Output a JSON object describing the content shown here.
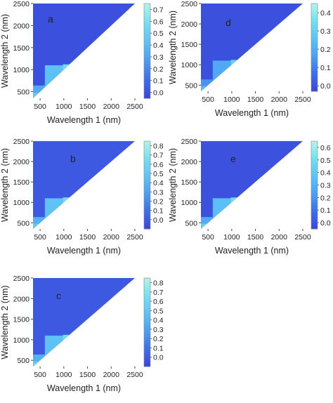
{
  "chart_data": [
    {
      "type": "heatmap",
      "panel_label": "a",
      "title": "",
      "xlabel": "Wavelength 1 (nm)",
      "ylabel": "Wavelength 2 (nm)",
      "x_ticks": [
        500,
        1000,
        1500,
        2000,
        2500
      ],
      "y_ticks": [
        500,
        1000,
        1500,
        2000,
        2500
      ],
      "xlim": [
        350,
        2500
      ],
      "ylim": [
        350,
        2500
      ],
      "colorbar": {
        "ticks": [
          0.0,
          0.1,
          0.2,
          0.3,
          0.4,
          0.5,
          0.6,
          0.7
        ],
        "range": [
          -0.05,
          0.75
        ]
      },
      "color_scale": [
        "#3b43d9",
        "#3f6de8",
        "#4c9ef3",
        "#5cc3f5",
        "#73e0ee",
        "#b3f2ea"
      ],
      "region": "upper triangle (wavelength 2 > wavelength 1)",
      "bands": [
        {
          "y_range": [
            350,
            480
          ],
          "x_range": [
            350,
            2500
          ],
          "value": 0.5
        },
        {
          "y_range": [
            480,
            640
          ],
          "x_range": [
            350,
            2500
          ],
          "value": 0.35
        },
        {
          "y_range": [
            640,
            790
          ],
          "x_range": [
            980,
            2500
          ],
          "value": 0.58
        },
        {
          "y_range": [
            790,
            920
          ],
          "x_range": [
            980,
            2500
          ],
          "value": 0.48
        },
        {
          "y_range": [
            920,
            1120
          ],
          "x_range": [
            980,
            2500
          ],
          "value": 0.6
        },
        {
          "y_range": [
            500,
            1100
          ],
          "x_range": [
            600,
            980
          ],
          "value": 0.45
        }
      ]
    },
    {
      "type": "heatmap",
      "panel_label": "b",
      "title": "",
      "xlabel": "Wavelength 1 (nm)",
      "ylabel": "Wavelength 2 (nm)",
      "x_ticks": [
        500,
        1000,
        1500,
        2000,
        2500
      ],
      "y_ticks": [
        500,
        1000,
        1500,
        2000,
        2500
      ],
      "xlim": [
        350,
        2500
      ],
      "ylim": [
        350,
        2500
      ],
      "colorbar": {
        "ticks": [
          0.0,
          0.1,
          0.2,
          0.3,
          0.4,
          0.5,
          0.6,
          0.7,
          0.8
        ],
        "range": [
          -0.1,
          0.85
        ]
      },
      "color_scale": [
        "#3b43d9",
        "#3f6de8",
        "#4c9ef3",
        "#5cc3f5",
        "#73e0ee",
        "#b3f2ea"
      ],
      "region": "upper triangle (wavelength 2 > wavelength 1)",
      "bands": [
        {
          "y_range": [
            350,
            480
          ],
          "x_range": [
            350,
            2500
          ],
          "value": 0.55
        },
        {
          "y_range": [
            480,
            640
          ],
          "x_range": [
            350,
            2500
          ],
          "value": 0.4
        },
        {
          "y_range": [
            640,
            790
          ],
          "x_range": [
            980,
            2500
          ],
          "value": 0.65
        },
        {
          "y_range": [
            790,
            920
          ],
          "x_range": [
            980,
            2500
          ],
          "value": 0.55
        },
        {
          "y_range": [
            920,
            1120
          ],
          "x_range": [
            980,
            2500
          ],
          "value": 0.68
        },
        {
          "y_range": [
            500,
            1100
          ],
          "x_range": [
            600,
            980
          ],
          "value": 0.5
        }
      ]
    },
    {
      "type": "heatmap",
      "panel_label": "c",
      "title": "",
      "xlabel": "Wavelength 1 (nm)",
      "ylabel": "Wavelength 2 (nm)",
      "x_ticks": [
        500,
        1000,
        1500,
        2000,
        2500
      ],
      "y_ticks": [
        500,
        1000,
        1500,
        2000,
        2500
      ],
      "xlim": [
        350,
        2500
      ],
      "ylim": [
        350,
        2500
      ],
      "colorbar": {
        "ticks": [
          0.0,
          0.1,
          0.2,
          0.3,
          0.4,
          0.5,
          0.6,
          0.7,
          0.8
        ],
        "range": [
          -0.1,
          0.85
        ]
      },
      "color_scale": [
        "#3b43d9",
        "#3f6de8",
        "#4c9ef3",
        "#5cc3f5",
        "#73e0ee",
        "#b3f2ea"
      ],
      "region": "upper triangle (wavelength 2 > wavelength 1)",
      "bands": [
        {
          "y_range": [
            350,
            480
          ],
          "x_range": [
            350,
            2500
          ],
          "value": 0.55
        },
        {
          "y_range": [
            480,
            640
          ],
          "x_range": [
            350,
            2500
          ],
          "value": 0.4
        },
        {
          "y_range": [
            640,
            790
          ],
          "x_range": [
            980,
            2500
          ],
          "value": 0.65
        },
        {
          "y_range": [
            790,
            920
          ],
          "x_range": [
            980,
            2500
          ],
          "value": 0.55
        },
        {
          "y_range": [
            920,
            1120
          ],
          "x_range": [
            980,
            2500
          ],
          "value": 0.68
        },
        {
          "y_range": [
            500,
            1100
          ],
          "x_range": [
            600,
            980
          ],
          "value": 0.5
        }
      ]
    },
    {
      "type": "heatmap",
      "panel_label": "d",
      "title": "",
      "xlabel": "Wavelength 1 (nm)",
      "ylabel": "Wavelength 2 (nm)",
      "x_ticks": [
        500,
        1000,
        1500,
        2000,
        2500
      ],
      "y_ticks": [
        500,
        1000,
        1500,
        2000,
        2500
      ],
      "xlim": [
        350,
        2500
      ],
      "ylim": [
        350,
        2500
      ],
      "colorbar": {
        "ticks": [
          0.0,
          0.1,
          0.2,
          0.3,
          0.4
        ],
        "range": [
          -0.03,
          0.45
        ]
      },
      "color_scale": [
        "#3b43d9",
        "#3f6de8",
        "#4c9ef3",
        "#5cc3f5",
        "#73e0ee",
        "#b3f2ea"
      ],
      "region": "upper triangle (wavelength 2 > wavelength 1)",
      "bands": [
        {
          "y_range": [
            350,
            480
          ],
          "x_range": [
            350,
            2500
          ],
          "value": 0.25
        },
        {
          "y_range": [
            480,
            640
          ],
          "x_range": [
            350,
            2500
          ],
          "value": 0.15
        },
        {
          "y_range": [
            640,
            790
          ],
          "x_range": [
            980,
            2500
          ],
          "value": 0.3
        },
        {
          "y_range": [
            790,
            920
          ],
          "x_range": [
            980,
            2500
          ],
          "value": 0.22
        },
        {
          "y_range": [
            920,
            1120
          ],
          "x_range": [
            980,
            2500
          ],
          "value": 0.32
        },
        {
          "y_range": [
            500,
            1100
          ],
          "x_range": [
            600,
            980
          ],
          "value": 0.2
        }
      ]
    },
    {
      "type": "heatmap",
      "panel_label": "e",
      "title": "",
      "xlabel": "Wavelength 1 (nm)",
      "ylabel": "Wavelength 2 (nm)",
      "x_ticks": [
        500,
        1000,
        1500,
        2000,
        2500
      ],
      "y_ticks": [
        500,
        1000,
        1500,
        2000,
        2500
      ],
      "xlim": [
        350,
        2500
      ],
      "ylim": [
        350,
        2500
      ],
      "colorbar": {
        "ticks": [
          0.0,
          0.1,
          0.2,
          0.3,
          0.4,
          0.5,
          0.6
        ],
        "range": [
          -0.05,
          0.65
        ]
      },
      "color_scale": [
        "#3b43d9",
        "#3f6de8",
        "#4c9ef3",
        "#5cc3f5",
        "#73e0ee",
        "#b3f2ea"
      ],
      "region": "upper triangle (wavelength 2 > wavelength 1)",
      "bands": [
        {
          "y_range": [
            350,
            480
          ],
          "x_range": [
            350,
            2500
          ],
          "value": 0.45
        },
        {
          "y_range": [
            480,
            640
          ],
          "x_range": [
            350,
            2500
          ],
          "value": 0.3
        },
        {
          "y_range": [
            640,
            790
          ],
          "x_range": [
            980,
            2500
          ],
          "value": 0.5
        },
        {
          "y_range": [
            790,
            920
          ],
          "x_range": [
            980,
            2500
          ],
          "value": 0.42
        },
        {
          "y_range": [
            920,
            1120
          ],
          "x_range": [
            980,
            2500
          ],
          "value": 0.52
        },
        {
          "y_range": [
            500,
            1100
          ],
          "x_range": [
            600,
            980
          ],
          "value": 0.38
        }
      ]
    }
  ]
}
